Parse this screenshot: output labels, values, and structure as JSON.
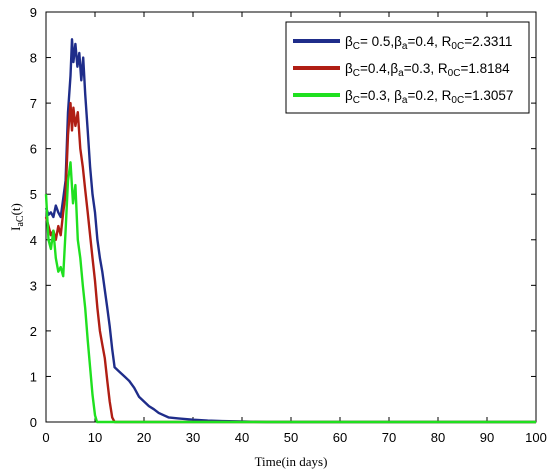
{
  "chart_data": {
    "type": "line",
    "xlabel": "Time(in days)",
    "ylabel": "I_aC(t)",
    "ylabel_main": "I",
    "ylabel_sub": "aC",
    "ylabel_tail": "(t)",
    "xlim": [
      0,
      100
    ],
    "ylim": [
      0,
      9
    ],
    "x_ticks": [
      "0",
      "10",
      "20",
      "30",
      "40",
      "50",
      "60",
      "70",
      "80",
      "90",
      "100"
    ],
    "y_ticks": [
      "0",
      "1",
      "2",
      "3",
      "4",
      "5",
      "6",
      "7",
      "8",
      "9"
    ],
    "grid": false,
    "legend_position": "top-right",
    "series": [
      {
        "name": "βC= 0.5,βa=0.4, R0C=2.3311",
        "legend_parts": {
          "b1": "β",
          "s1": "C",
          "t1": "= 0.5,",
          "b2": "β",
          "s2": "a",
          "t2": "=0.4, R",
          "s3": "0C",
          "t3": "=2.3311"
        },
        "color": "#1f2d8a",
        "points": [
          [
            0,
            4.7
          ],
          [
            0.5,
            4.55
          ],
          [
            1,
            4.6
          ],
          [
            1.5,
            4.5
          ],
          [
            2,
            4.75
          ],
          [
            2.5,
            4.6
          ],
          [
            3,
            4.5
          ],
          [
            3.5,
            4.9
          ],
          [
            4,
            5.3
          ],
          [
            4.5,
            6.8
          ],
          [
            5,
            7.6
          ],
          [
            5.3,
            8.4
          ],
          [
            5.6,
            7.9
          ],
          [
            6,
            8.3
          ],
          [
            6.4,
            7.8
          ],
          [
            6.8,
            8.1
          ],
          [
            7.2,
            7.5
          ],
          [
            7.6,
            8.0
          ],
          [
            8,
            7.2
          ],
          [
            8.5,
            6.4
          ],
          [
            9,
            5.6
          ],
          [
            9.5,
            5.0
          ],
          [
            10,
            4.6
          ],
          [
            10.5,
            4.0
          ],
          [
            11,
            3.6
          ],
          [
            11.5,
            3.3
          ],
          [
            12,
            2.9
          ],
          [
            12.5,
            2.5
          ],
          [
            13,
            2.1
          ],
          [
            13.5,
            1.6
          ],
          [
            14,
            1.2
          ],
          [
            15,
            1.1
          ],
          [
            16,
            1.0
          ],
          [
            17,
            0.9
          ],
          [
            18,
            0.75
          ],
          [
            19,
            0.55
          ],
          [
            20,
            0.45
          ],
          [
            21,
            0.35
          ],
          [
            22,
            0.28
          ],
          [
            23,
            0.2
          ],
          [
            24,
            0.15
          ],
          [
            25,
            0.1
          ],
          [
            27,
            0.08
          ],
          [
            30,
            0.05
          ],
          [
            33,
            0.03
          ],
          [
            36,
            0.02
          ],
          [
            40,
            0.01
          ],
          [
            45,
            0.0
          ],
          [
            100,
            0.0
          ]
        ]
      },
      {
        "name": "βC=0.4,βa=0.3, R0C=1.8184",
        "legend_parts": {
          "b1": "β",
          "s1": "C",
          "t1": "=0.4,",
          "b2": "β",
          "s2": "a",
          "t2": "=0.3, R",
          "s3": "0C",
          "t3": "=1.8184"
        },
        "color": "#b01e14",
        "points": [
          [
            0,
            4.5
          ],
          [
            0.5,
            4.3
          ],
          [
            1,
            4.1
          ],
          [
            1.5,
            4.2
          ],
          [
            2,
            4.0
          ],
          [
            2.5,
            4.3
          ],
          [
            3,
            4.1
          ],
          [
            3.5,
            4.6
          ],
          [
            4,
            5.0
          ],
          [
            4.5,
            6.3
          ],
          [
            5,
            7.0
          ],
          [
            5.3,
            6.4
          ],
          [
            5.6,
            6.9
          ],
          [
            6,
            6.5
          ],
          [
            6.5,
            6.8
          ],
          [
            7,
            6.0
          ],
          [
            7.5,
            5.6
          ],
          [
            8,
            5.1
          ],
          [
            8.5,
            4.6
          ],
          [
            9,
            4.1
          ],
          [
            9.5,
            3.6
          ],
          [
            10,
            3.1
          ],
          [
            10.5,
            2.5
          ],
          [
            11,
            2.0
          ],
          [
            11.5,
            1.7
          ],
          [
            12,
            1.4
          ],
          [
            12.5,
            0.9
          ],
          [
            13,
            0.45
          ],
          [
            13.5,
            0.1
          ],
          [
            14,
            0.0
          ],
          [
            100,
            0.0
          ]
        ]
      },
      {
        "name": "βC=0.3, βa=0.2, R0C=1.3057",
        "legend_parts": {
          "b1": "β",
          "s1": "C",
          "t1": "=0.3, ",
          "b2": "β",
          "s2": "a",
          "t2": "=0.2, R",
          "s3": "0C",
          "t3": "=1.3057"
        },
        "color": "#1fe01f",
        "points": [
          [
            0,
            5.0
          ],
          [
            0.5,
            4.0
          ],
          [
            1,
            3.8
          ],
          [
            1.5,
            4.2
          ],
          [
            2,
            3.6
          ],
          [
            2.5,
            3.3
          ],
          [
            3,
            3.4
          ],
          [
            3.5,
            3.2
          ],
          [
            4,
            4.2
          ],
          [
            4.5,
            5.3
          ],
          [
            5,
            5.7
          ],
          [
            5.5,
            4.8
          ],
          [
            6,
            5.2
          ],
          [
            6.5,
            4.0
          ],
          [
            7,
            3.6
          ],
          [
            7.5,
            3.0
          ],
          [
            8,
            2.5
          ],
          [
            8.5,
            1.8
          ],
          [
            9,
            1.2
          ],
          [
            9.5,
            0.6
          ],
          [
            10,
            0.15
          ],
          [
            10.4,
            0.0
          ],
          [
            100,
            0.0
          ]
        ]
      }
    ]
  }
}
